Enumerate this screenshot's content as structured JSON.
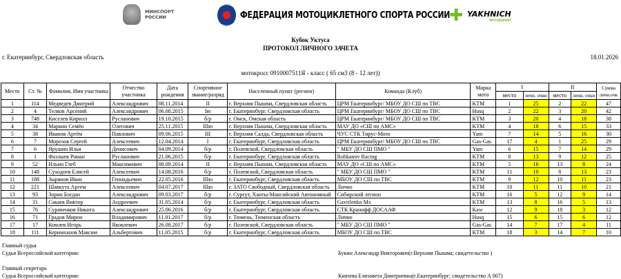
{
  "logos": {
    "minsport": "МИНСПОРТ РОССИИ",
    "federation": "ФЕДЕРАЦИЯ МОТОЦИКЛЕТНОГО СПОРТА РОССИИ",
    "sponsor": "YAKHNICH",
    "sponsor_sub": "MOTORSPORT"
  },
  "header": {
    "event": "Кубок Уктуса",
    "title": "ПРОТОКОЛ ЛИЧНОГО ЗАЧЕТА",
    "city": "г. Екатеринбург, Свердловская область",
    "date": "18.01.2026",
    "class": "мотокросс 0910007511Я - класс ( 65 см3 (8 - 12 лет))"
  },
  "table": {
    "columns": [
      "Место",
      "Ст. №",
      "Фамилия, Имя участника",
      "Отчество участника",
      "Дата рождения",
      "Спортивное звание/разряд",
      "Населенный пункт (регион)",
      "Команда (Клуб)",
      "Марка мото",
      "I",
      "II",
      "Сумма личн.очк"
    ],
    "sub": [
      "место",
      "личн. очки",
      "место",
      "личн. очки"
    ],
    "highlight_color": "#ffff00",
    "rows": [
      [
        "1",
        "114",
        "Медведев Дмитрий",
        "Александрович",
        "08.11.2014",
        "II",
        "г. Верхняя Пышма, Свердловская область",
        "ЦРМ Екатеринбург/ МБОУ ДО СШ по ТВС",
        "KTM",
        "1",
        "25",
        "2",
        "22",
        "47"
      ],
      [
        "2",
        "4",
        "Телков Арсений",
        "Александрович",
        "06.08.2015",
        "Iю",
        "г. Екатеринбург, Свердловская область",
        "ЦРМ Екатеринбург/ МБОУ ДО СШ по ТВС",
        "Husq",
        "2",
        "22",
        "3",
        "20",
        "42"
      ],
      [
        "3",
        "748",
        "Киселев Кирилл",
        "Русланович",
        "19.10.2015",
        "б/р",
        "г. Омск, Омская область",
        "ЦРМ Екатеринбург/ МБОУ ДО СШ по ТВС",
        "KTM",
        "3",
        "20",
        "4",
        "18",
        "38"
      ],
      [
        "4",
        "34",
        "Маркин Семён",
        "Олегович",
        "25.11.2015",
        "IIIю",
        "г. Верхняя Пышма, Свердловская область",
        "МАУ ДО «СШ по АМС»",
        "KTM",
        "4",
        "18",
        "6",
        "15",
        "33"
      ],
      [
        "5",
        "38",
        "Иванов Артём",
        "Павлович",
        "09.06.2015",
        "III",
        "г. Верхняя Салда, Свердловская область",
        "ЧУС СТК Тирус-Мото",
        "Yam",
        "7",
        "14",
        "5",
        "16",
        "30"
      ],
      [
        "6",
        "7",
        "Морозов Сергей",
        "Алексеевич",
        "12.04.2014",
        "I",
        "г. Екатеринбург, Свердловская область",
        "ЦРМ Екатеринбург/ МБОУ ДО СШ по ТВС",
        "Gas-Gas",
        "17",
        "4",
        "1",
        "25",
        "29"
      ],
      [
        "7",
        "6",
        "Ярушин Илья",
        "Денисович",
        "04.09.2014",
        "б/р",
        "г. Полевской, Свердловская область",
        "\" МБУ ДО СШ ПМО \"",
        "Yam",
        "6",
        "15",
        "7",
        "14",
        "29"
      ],
      [
        "8",
        "1",
        "Фазлыев Роман",
        "Русланович",
        "21.06.2015",
        "б/р",
        "г. Екатеринбург, Свердловская область",
        "Robkanov Racing",
        "KTM",
        "8",
        "13",
        "9",
        "12",
        "25"
      ],
      [
        "9",
        "52",
        "Ильин Глеб",
        "Максимович",
        "08.09.2014",
        "II",
        "г. Верхняя Пышма, Свердловская область",
        "МАУ ДО «СШ по АМС»",
        "KTM",
        "5",
        "16",
        "13",
        "8",
        "24"
      ],
      [
        "10",
        "148",
        "Суходоев Елисей",
        "Алексеевич",
        "14.08.2016",
        "б/р",
        "г. Полевской, Свердловская область",
        "\" МБУ ДО СШ ПМО \"",
        "KTM",
        "11",
        "10",
        "8",
        "13",
        "23"
      ],
      [
        "11",
        "188",
        "Зырянов Иван",
        "Геннадьевич",
        "22.05.2016",
        "IIIю",
        "г. Екатеринбург, Свердловская область",
        "МБОУ ДО СШ по ТВС",
        "KTM",
        "9",
        "12",
        "10",
        "11",
        "23"
      ],
      [
        "12",
        "221",
        "Шавкута Артем",
        "Алексеевич",
        "04.07.2017",
        "IIIю",
        "г. ЗАТО Свободный, Свердловская область",
        "Лично",
        "KTM",
        "10",
        "11",
        "11",
        "10",
        "21"
      ],
      [
        "13",
        "93",
        "Зорин Богдан",
        "Александрович",
        "09.03.2017",
        "б/р",
        "г. Сургут, Ханты-Мансийский Автономный",
        "Сибирский легион",
        "KTM",
        "16",
        "5",
        "12",
        "9",
        "14"
      ],
      [
        "14",
        "31",
        "Сакаев Виктор",
        "Андреевич",
        "31.05.2014",
        "б/р",
        "г. Екатеринбург, Свердловская область",
        "Gavrilenko Mx",
        "KTM",
        "13",
        "8",
        "16",
        "5",
        "13"
      ],
      [
        "15",
        "76",
        "Сураченков Никита",
        "Александрович",
        "25.06.2016",
        "б/р",
        "г. Екатеринбург, Свердловская область",
        "СТК Кранофф ДОСААФ",
        "Kaw",
        "12",
        "9",
        "18",
        "3",
        "12"
      ],
      [
        "16",
        "71",
        "Градов Мирон",
        "Владимирович",
        "11.01.2017",
        "б/р",
        "г. Тюмень, Тюменская область",
        "Лично",
        "Husq",
        "15",
        "6",
        "15",
        "6",
        "12"
      ],
      [
        "17",
        "17",
        "Комлев Игорь",
        "Яковлевич",
        "26.08.2017",
        "б/р",
        "г. Полевской, Свердловская область",
        "\" МБУ ДО СШ ПМО \"",
        "Gas-Gas",
        "14",
        "7",
        "17",
        "4",
        "11"
      ],
      [
        "18",
        "111",
        "Керимханов Максим",
        "Альбертович",
        "11.05.2015",
        "б/р",
        "г. Екатеринбург, Свердловская область",
        "МБОУ ДО СШ по ТВС",
        "KTM",
        "18",
        "3",
        "14",
        "7",
        "10"
      ]
    ]
  },
  "footer": {
    "judge_title": "Главный судья",
    "judge_cat": "Судья Всероссийской категории:",
    "judge_name": "Букин Александр Викторович(г.Верхняя Пышма; свидетельство )",
    "secretary_title": "Главный секретарь",
    "secretary_cat": "Судья Всероссийской категории:",
    "secretary_name": "Князева Елизавета Дмитриевна(г.Екатеринбург; свидетельство А 007)"
  }
}
